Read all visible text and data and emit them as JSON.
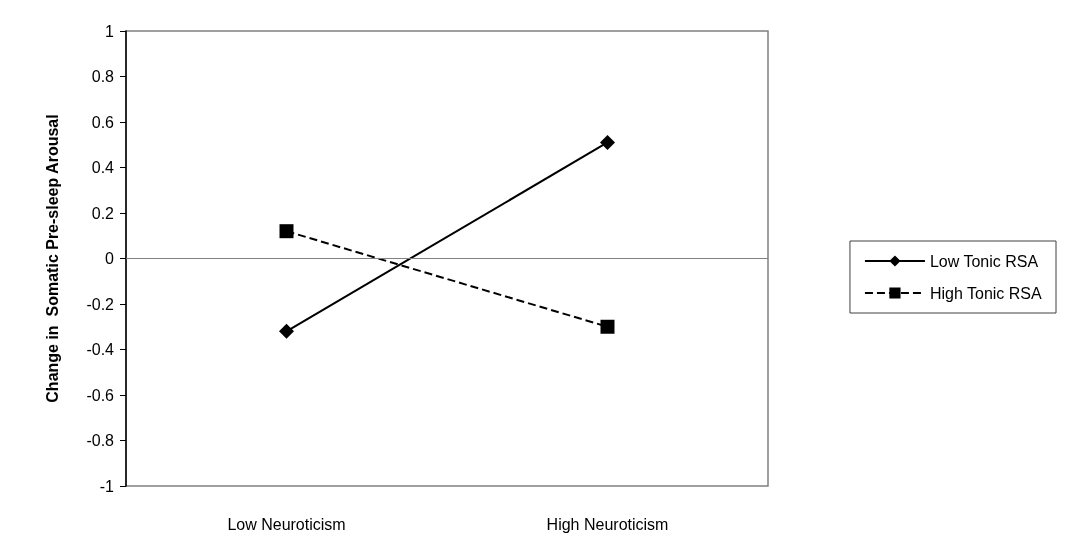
{
  "chart_data": {
    "type": "line",
    "ylabel": "Change in  Somatic Pre-sleep Arousal",
    "categories": [
      "Low Neuroticism",
      "High Neuroticism"
    ],
    "series": [
      {
        "name": "Low Tonic RSA",
        "color": "#000000",
        "values": [
          -0.32,
          0.51
        ],
        "marker": "diamond",
        "line_style": "solid"
      },
      {
        "name": "High Tonic RSA",
        "color": "#000000",
        "values": [
          0.12,
          -0.3
        ],
        "marker": "square",
        "line_style": "dashed"
      }
    ],
    "ylim": [
      -1,
      1
    ],
    "yticks": [
      -1,
      -0.8,
      -0.6,
      -0.4,
      -0.2,
      0,
      0.2,
      0.4,
      0.6,
      0.8,
      1
    ],
    "ref_lines": [
      {
        "axis": "y",
        "value": 0,
        "color": "#808080"
      }
    ],
    "grid": false,
    "legend": "right"
  }
}
